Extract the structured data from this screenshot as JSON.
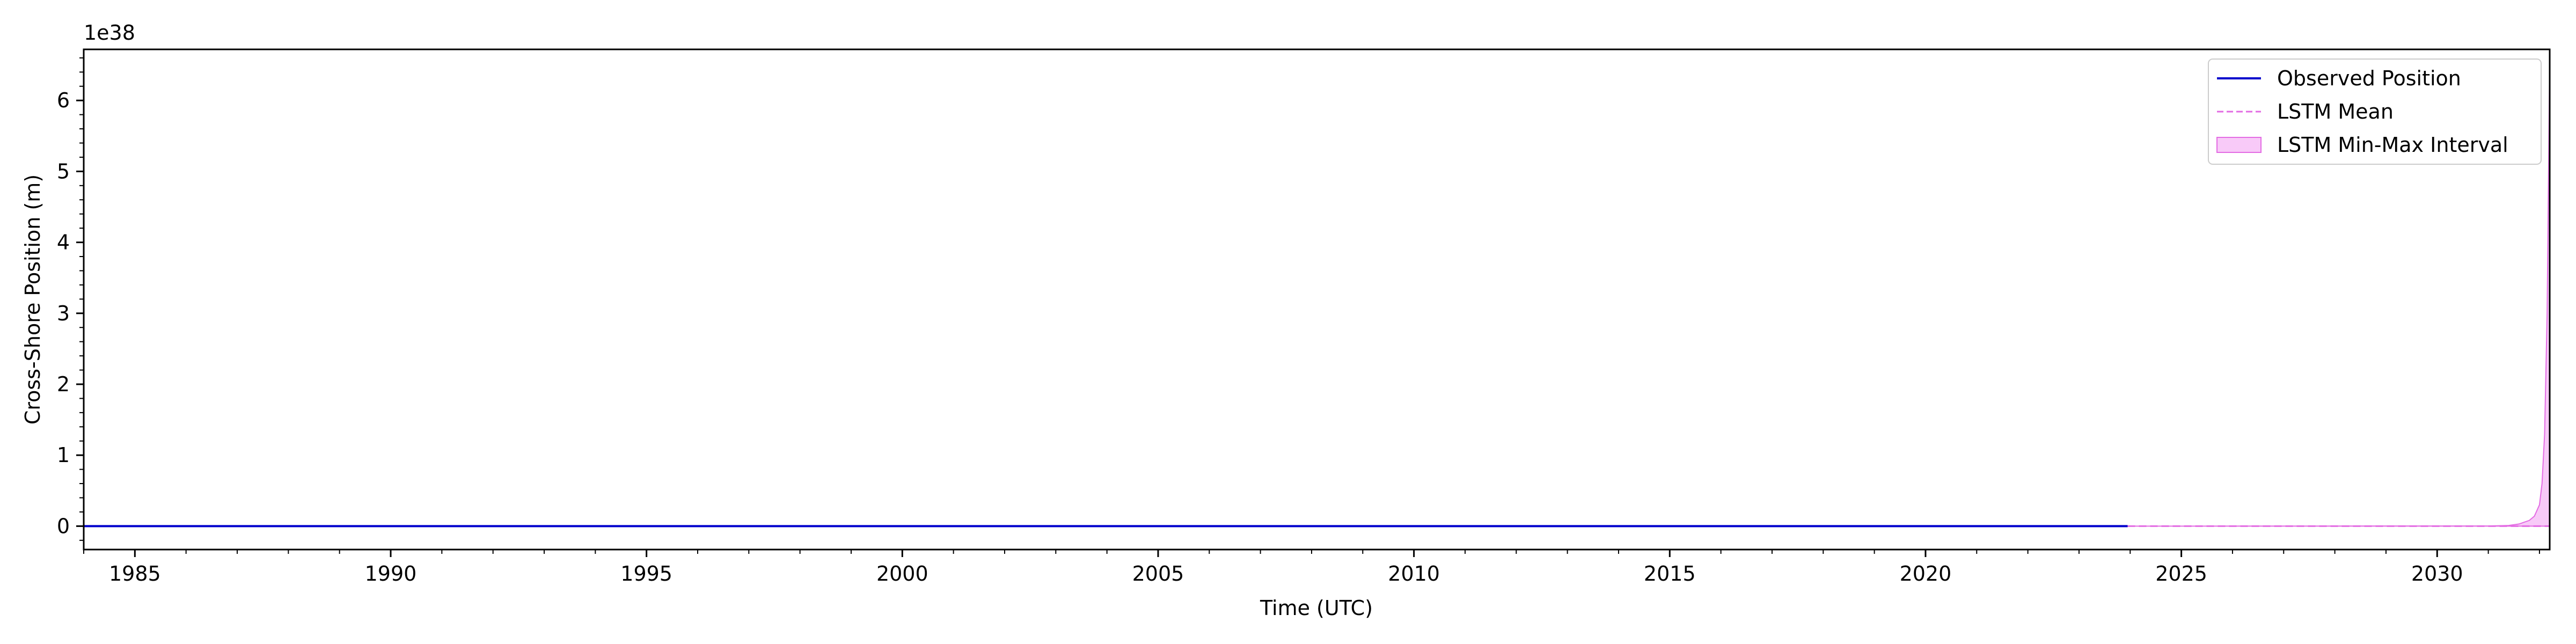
{
  "chart_data": {
    "type": "line",
    "xlabel": "Time (UTC)",
    "ylabel": "Cross-Shore Position (m)",
    "y_offset_text": "1e38",
    "xlim": [
      1984.0,
      2032.2
    ],
    "ylim": [
      -0.33,
      6.72
    ],
    "x_major_ticks": [
      1985,
      1990,
      1995,
      2000,
      2005,
      2010,
      2015,
      2020,
      2025,
      2030
    ],
    "x_minor_step": 1,
    "y_major_ticks": [
      0,
      1,
      2,
      3,
      4,
      5,
      6
    ],
    "y_minor_step": 0.2,
    "legend_position": "top-right",
    "series": [
      {
        "name": "Observed Position",
        "style": "solid",
        "color": "#0000cc",
        "x": [
          1984.0,
          2023.95
        ],
        "y": [
          0,
          0
        ]
      },
      {
        "name": "LSTM Mean",
        "style": "dashed",
        "color": "#e36be3",
        "x": [
          2023.95,
          2032.2
        ],
        "y": [
          0,
          0
        ]
      },
      {
        "name": "LSTM Min-Max Interval",
        "style": "fill",
        "color": "#f5b8f5",
        "edge_color": "#e36be3",
        "x": [
          2023.95,
          2031.0,
          2031.4,
          2031.6,
          2031.8,
          2031.9,
          2032.0,
          2032.05,
          2032.1,
          2032.15,
          2032.2
        ],
        "y_low": [
          0,
          0,
          0,
          0,
          0,
          0,
          0,
          0,
          0,
          0,
          0
        ],
        "y_high": [
          0,
          0.002,
          0.01,
          0.03,
          0.08,
          0.14,
          0.3,
          0.6,
          1.3,
          3.0,
          6.6
        ]
      }
    ]
  }
}
